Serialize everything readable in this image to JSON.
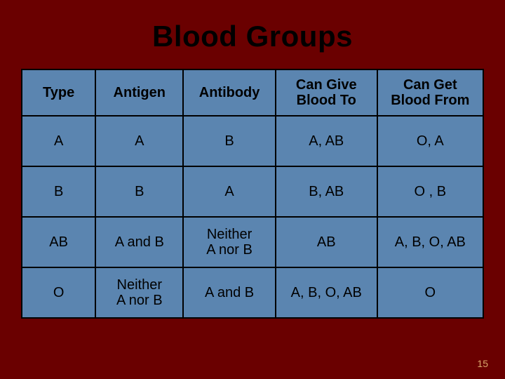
{
  "slide": {
    "title": "Blood Groups",
    "background_color": "#6a0000",
    "title_color": "#000000",
    "title_fontsize": 42,
    "page_number": "15",
    "page_number_color": "#d9a56a"
  },
  "table": {
    "background_color": "#5b85b0",
    "border_color": "#000000",
    "text_color": "#000000",
    "header_fontsize": 20,
    "cell_fontsize": 20,
    "columns": [
      {
        "label": "Type",
        "width": "16%"
      },
      {
        "label": "Antigen",
        "width": "19%"
      },
      {
        "label": "Antibody",
        "width": "20%"
      },
      {
        "label": "Can Give\nBlood To",
        "width": "22%"
      },
      {
        "label": "Can Get\nBlood From",
        "width": "23%"
      }
    ],
    "rows": [
      {
        "type": "A",
        "antigen": "A",
        "antibody": "B",
        "give": "A, AB",
        "get": "O, A"
      },
      {
        "type": "B",
        "antigen": "B",
        "antibody": "A",
        "give": "B, AB",
        "get": "O , B"
      },
      {
        "type": "AB",
        "antigen": "A and B",
        "antibody": "Neither\nA nor B",
        "give": "AB",
        "get": "A, B, O, AB"
      },
      {
        "type": "O",
        "antigen": "Neither\nA nor B",
        "antibody": "A and B",
        "give": "A, B, O, AB",
        "get": "O"
      }
    ]
  }
}
